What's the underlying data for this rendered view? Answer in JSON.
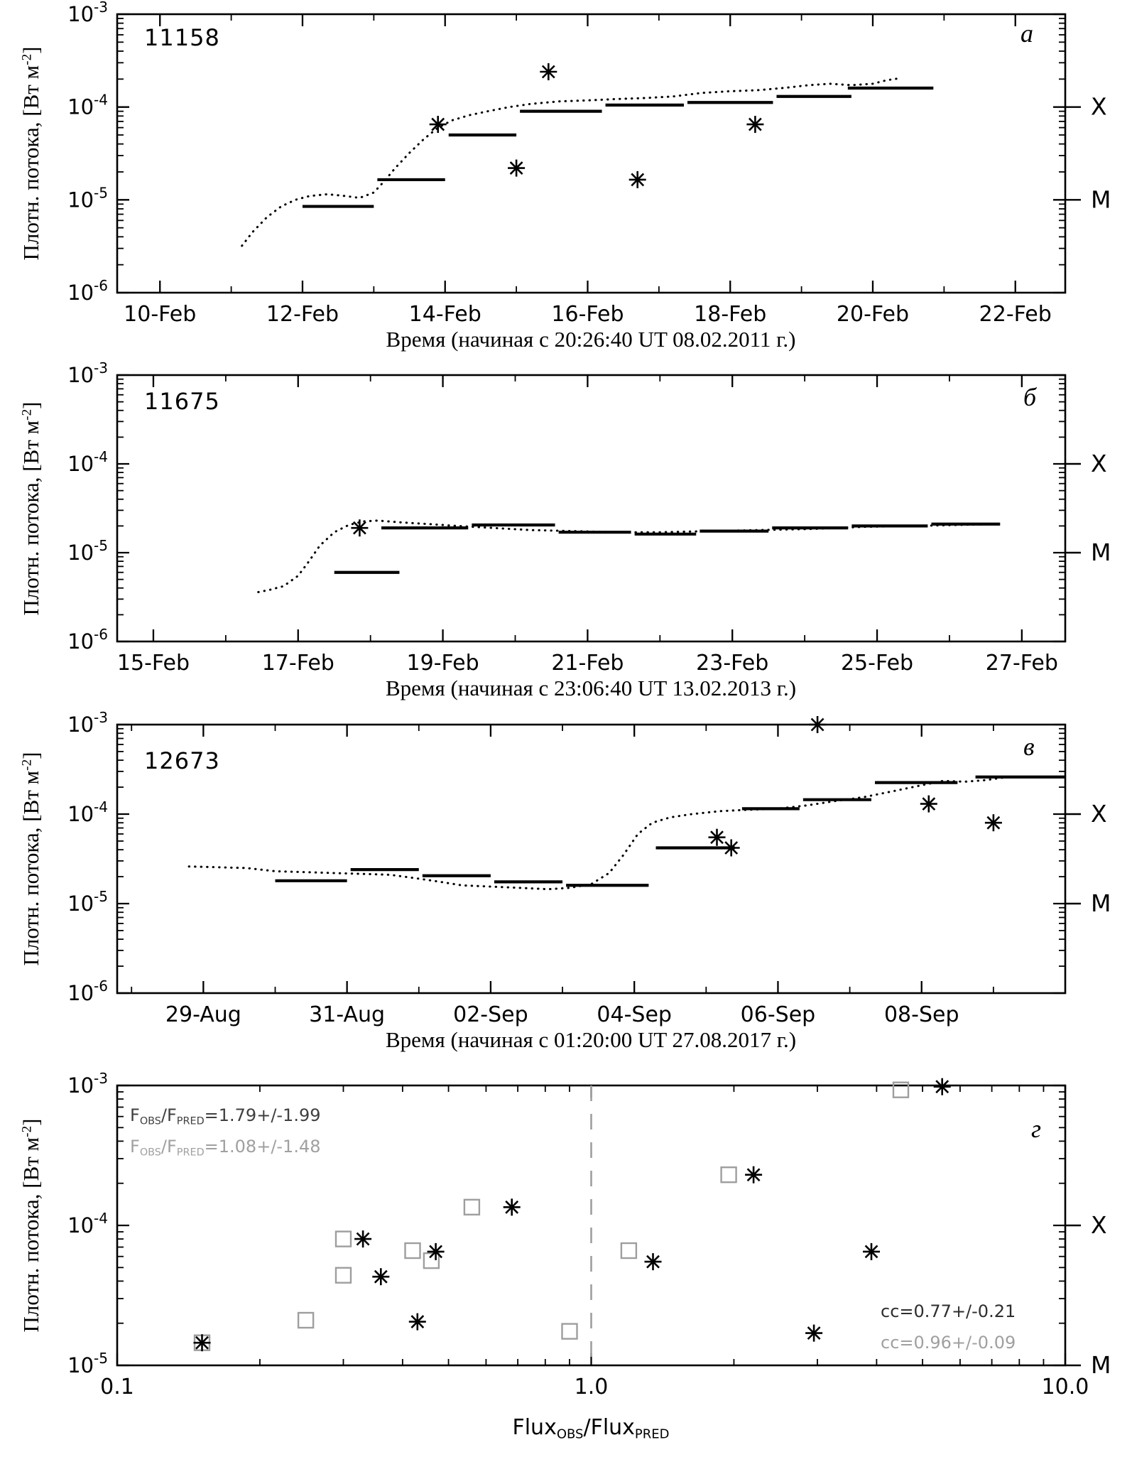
{
  "figure": {
    "background": "#ffffff",
    "axis_color": "#000000",
    "gray": "#9e9e9e"
  },
  "ylabel": {
    "pre": "Плотн. потока, [Вт м",
    "sup": "-2",
    "post": "]"
  },
  "chart_data": [
    {
      "type": "line",
      "panel": "a",
      "panel_label": "а",
      "region_id": "11158",
      "xlabel": "Время (начиная с 20:26:40 UT 08.02.2011 г.)",
      "xscale": "linear",
      "xlim": [
        9.4,
        22.7
      ],
      "ylim_exp": [
        -6,
        -3
      ],
      "xticks": [
        {
          "v": 10,
          "label": "10-Feb"
        },
        {
          "v": 12,
          "label": "12-Feb"
        },
        {
          "v": 14,
          "label": "14-Feb"
        },
        {
          "v": 16,
          "label": "16-Feb"
        },
        {
          "v": 18,
          "label": "18-Feb"
        },
        {
          "v": 20,
          "label": "20-Feb"
        },
        {
          "v": 22,
          "label": "22-Feb"
        }
      ],
      "right_labels": [
        {
          "label": "X",
          "exp": -4
        },
        {
          "label": "M",
          "exp": -5
        }
      ],
      "dotted_curve": [
        [
          11.15,
          3.2e-06
        ],
        [
          11.3,
          4.5e-06
        ],
        [
          11.5,
          6.5e-06
        ],
        [
          11.7,
          8.5e-06
        ],
        [
          11.9,
          1e-05
        ],
        [
          12.1,
          1.1e-05
        ],
        [
          12.35,
          1.15e-05
        ],
        [
          12.6,
          1.1e-05
        ],
        [
          12.8,
          1.05e-05
        ],
        [
          13.0,
          1.2e-05
        ],
        [
          13.15,
          1.6e-05
        ],
        [
          13.3,
          2.2e-05
        ],
        [
          13.5,
          3.2e-05
        ],
        [
          13.7,
          4.5e-05
        ],
        [
          13.9,
          6e-05
        ],
        [
          14.1,
          7.2e-05
        ],
        [
          14.35,
          8.2e-05
        ],
        [
          14.6,
          9e-05
        ],
        [
          14.9,
          0.0001
        ],
        [
          15.2,
          0.000108
        ],
        [
          15.6,
          0.000115
        ],
        [
          16.0,
          0.000118
        ],
        [
          16.4,
          0.000122
        ],
        [
          16.8,
          0.000125
        ],
        [
          17.2,
          0.00013
        ],
        [
          17.6,
          0.000142
        ],
        [
          18.0,
          0.000148
        ],
        [
          18.4,
          0.000152
        ],
        [
          18.8,
          0.000162
        ],
        [
          19.1,
          0.000172
        ],
        [
          19.4,
          0.000178
        ],
        [
          19.7,
          0.000172
        ],
        [
          20.0,
          0.000178
        ],
        [
          20.2,
          0.000195
        ],
        [
          20.4,
          0.000205
        ]
      ],
      "bars": [
        [
          12.0,
          13.0,
          8.5e-06
        ],
        [
          13.05,
          14.0,
          1.65e-05
        ],
        [
          14.05,
          15.0,
          5e-05
        ],
        [
          15.05,
          16.2,
          9e-05
        ],
        [
          16.25,
          17.35,
          0.000105
        ],
        [
          17.4,
          18.6,
          0.000112
        ],
        [
          18.65,
          19.7,
          0.00013
        ],
        [
          19.65,
          20.85,
          0.00016
        ]
      ],
      "asterisks": [
        [
          13.9,
          6.5e-05
        ],
        [
          15.0,
          2.2e-05
        ],
        [
          15.45,
          0.00024
        ],
        [
          16.7,
          1.65e-05
        ],
        [
          18.35,
          6.5e-05
        ]
      ]
    },
    {
      "type": "line",
      "panel": "b",
      "panel_label": "б",
      "region_id": "11675",
      "xlabel": "Время (начиная с 23:06:40 UT 13.02.2013 г.)",
      "xscale": "linear",
      "xlim": [
        14.5,
        27.6
      ],
      "ylim_exp": [
        -6,
        -3
      ],
      "xticks": [
        {
          "v": 15,
          "label": "15-Feb"
        },
        {
          "v": 17,
          "label": "17-Feb"
        },
        {
          "v": 19,
          "label": "19-Feb"
        },
        {
          "v": 21,
          "label": "21-Feb"
        },
        {
          "v": 23,
          "label": "23-Feb"
        },
        {
          "v": 25,
          "label": "25-Feb"
        },
        {
          "v": 27,
          "label": "27-Feb"
        }
      ],
      "right_labels": [
        {
          "label": "X",
          "exp": -4
        },
        {
          "label": "M",
          "exp": -5
        }
      ],
      "dotted_curve": [
        [
          16.45,
          3.6e-06
        ],
        [
          16.6,
          3.8e-06
        ],
        [
          16.8,
          4.2e-06
        ],
        [
          17.0,
          5.5e-06
        ],
        [
          17.15,
          8e-06
        ],
        [
          17.3,
          1.2e-05
        ],
        [
          17.5,
          1.7e-05
        ],
        [
          17.7,
          2.05e-05
        ],
        [
          17.9,
          2.25e-05
        ],
        [
          18.1,
          2.3e-05
        ],
        [
          18.4,
          2.2e-05
        ],
        [
          18.8,
          2.1e-05
        ],
        [
          19.2,
          2e-05
        ],
        [
          19.7,
          1.9e-05
        ],
        [
          20.2,
          1.8e-05
        ],
        [
          20.8,
          1.75e-05
        ],
        [
          21.4,
          1.7e-05
        ],
        [
          22.0,
          1.7e-05
        ],
        [
          22.7,
          1.75e-05
        ],
        [
          23.4,
          1.8e-05
        ],
        [
          24.1,
          1.85e-05
        ],
        [
          24.8,
          1.95e-05
        ],
        [
          25.5,
          2e-05
        ],
        [
          26.1,
          2.05e-05
        ],
        [
          26.7,
          2.1e-05
        ]
      ],
      "bars": [
        [
          17.5,
          18.4,
          6e-06
        ],
        [
          18.15,
          19.35,
          1.9e-05
        ],
        [
          19.4,
          20.55,
          2.05e-05
        ],
        [
          20.6,
          21.6,
          1.7e-05
        ],
        [
          21.65,
          22.5,
          1.62e-05
        ],
        [
          22.55,
          23.5,
          1.75e-05
        ],
        [
          23.55,
          24.6,
          1.9e-05
        ],
        [
          24.65,
          25.7,
          2e-05
        ],
        [
          25.75,
          26.7,
          2.1e-05
        ]
      ],
      "asterisks": [
        [
          17.85,
          1.9e-05
        ]
      ]
    },
    {
      "type": "line",
      "panel": "v",
      "panel_label": "в",
      "region_id": "12673",
      "xlabel": "Время (начиная с 01:20:00 UT 27.08.2017 г.)",
      "xscale": "linear",
      "xlim": [
        27.8,
        41.0
      ],
      "ylim_exp": [
        -6,
        -3
      ],
      "xticks": [
        {
          "v": 29,
          "label": "29-Aug"
        },
        {
          "v": 31,
          "label": "31-Aug"
        },
        {
          "v": 33,
          "label": "02-Sep"
        },
        {
          "v": 35,
          "label": "04-Sep"
        },
        {
          "v": 37,
          "label": "06-Sep"
        },
        {
          "v": 39,
          "label": "08-Sep"
        }
      ],
      "right_labels": [
        {
          "label": "X",
          "exp": -4
        },
        {
          "label": "M",
          "exp": -5
        }
      ],
      "dotted_curve": [
        [
          28.8,
          2.6e-05
        ],
        [
          29.2,
          2.55e-05
        ],
        [
          29.6,
          2.5e-05
        ],
        [
          30.0,
          2.3e-05
        ],
        [
          30.4,
          2.25e-05
        ],
        [
          30.8,
          2.2e-05
        ],
        [
          31.2,
          2.15e-05
        ],
        [
          31.6,
          2.1e-05
        ],
        [
          32.0,
          1.9e-05
        ],
        [
          32.3,
          1.75e-05
        ],
        [
          32.6,
          1.6e-05
        ],
        [
          33.0,
          1.55e-05
        ],
        [
          33.4,
          1.5e-05
        ],
        [
          33.8,
          1.45e-05
        ],
        [
          34.1,
          1.5e-05
        ],
        [
          34.4,
          1.65e-05
        ],
        [
          34.65,
          2.2e-05
        ],
        [
          34.85,
          3.5e-05
        ],
        [
          35.05,
          6e-05
        ],
        [
          35.25,
          8e-05
        ],
        [
          35.5,
          9.2e-05
        ],
        [
          35.8,
          0.0001
        ],
        [
          36.2,
          0.000108
        ],
        [
          36.6,
          0.000112
        ],
        [
          37.0,
          0.000115
        ],
        [
          37.4,
          0.000125
        ],
        [
          37.8,
          0.00014
        ],
        [
          38.2,
          0.000155
        ],
        [
          38.6,
          0.00018
        ],
        [
          39.0,
          0.00021
        ],
        [
          39.3,
          0.000235
        ],
        [
          39.6,
          0.00023
        ],
        [
          39.9,
          0.00024
        ],
        [
          40.2,
          0.00026
        ]
      ],
      "bars": [
        [
          30.0,
          31.0,
          1.8e-05
        ],
        [
          31.05,
          32.0,
          2.4e-05
        ],
        [
          32.05,
          33.0,
          2.05e-05
        ],
        [
          33.05,
          34.0,
          1.75e-05
        ],
        [
          34.05,
          35.2,
          1.6e-05
        ],
        [
          35.3,
          36.4,
          4.2e-05
        ],
        [
          36.5,
          37.3,
          0.000115
        ],
        [
          37.35,
          38.3,
          0.000145
        ],
        [
          38.35,
          39.5,
          0.000225
        ],
        [
          39.75,
          41.0,
          0.00026
        ]
      ],
      "asterisks": [
        [
          36.15,
          5.5e-05
        ],
        [
          36.35,
          4.2e-05
        ],
        [
          37.55,
          0.001
        ],
        [
          39.1,
          0.00013
        ],
        [
          40.0,
          8e-05
        ]
      ]
    },
    {
      "type": "scatter",
      "panel": "g",
      "panel_label": "г",
      "xscale": "log",
      "xlim": [
        0.1,
        10.0
      ],
      "ylim_exp": [
        -5,
        -3
      ],
      "xticks": [
        {
          "v": 0.1,
          "label": "0.1"
        },
        {
          "v": 1.0,
          "label": "1.0"
        },
        {
          "v": 10.0,
          "label": "10.0"
        }
      ],
      "xlabel_parts": {
        "p1": "Flux",
        "s1": "OBS",
        "p2": "/Flux",
        "s2": "PRED"
      },
      "dashed_vline": 1.0,
      "right_labels": [
        {
          "label": "X",
          "exp": -4
        },
        {
          "label": "M",
          "exp": -5
        }
      ],
      "series": [
        {
          "name": "squares-gray",
          "marker": "square",
          "color": "#9e9e9e",
          "points": [
            [
              0.151,
              1.45e-05
            ],
            [
              0.25,
              2.1e-05
            ],
            [
              0.3,
              8e-05
            ],
            [
              0.3,
              4.4e-05
            ],
            [
              0.42,
              6.6e-05
            ],
            [
              0.46,
              5.6e-05
            ],
            [
              0.56,
              0.000135
            ],
            [
              0.9,
              1.75e-05
            ],
            [
              1.2,
              6.6e-05
            ],
            [
              1.95,
              0.00023
            ],
            [
              4.5,
              0.00093
            ]
          ]
        },
        {
          "name": "asterisks-black",
          "marker": "asterisk",
          "color": "#000000",
          "points": [
            [
              0.151,
              1.45e-05
            ],
            [
              0.33,
              8e-05
            ],
            [
              0.36,
              4.3e-05
            ],
            [
              0.43,
              2.05e-05
            ],
            [
              0.47,
              6.5e-05
            ],
            [
              0.68,
              0.000135
            ],
            [
              1.35,
              5.5e-05
            ],
            [
              2.2,
              0.00023
            ],
            [
              2.95,
              1.7e-05
            ],
            [
              3.9,
              6.5e-05
            ],
            [
              5.5,
              0.00098
            ]
          ]
        }
      ],
      "annotations": {
        "f1": {
          "p1": "F",
          "s1": "OBS",
          "p2": "/F",
          "s2": "PRED",
          "rest": "=1.79+/-1.99",
          "color": "#3f3f3f"
        },
        "f2": {
          "p1": "F",
          "s1": "OBS",
          "p2": "/F",
          "s2": "PRED",
          "rest": "=1.08+/-1.48",
          "color": "#a0a0a0"
        },
        "cc1": {
          "text": "cc=0.77+/-0.21",
          "color": "#2e2e2e"
        },
        "cc2": {
          "text": "cc=0.96+/-0.09",
          "color": "#a0a0a0"
        }
      }
    }
  ]
}
